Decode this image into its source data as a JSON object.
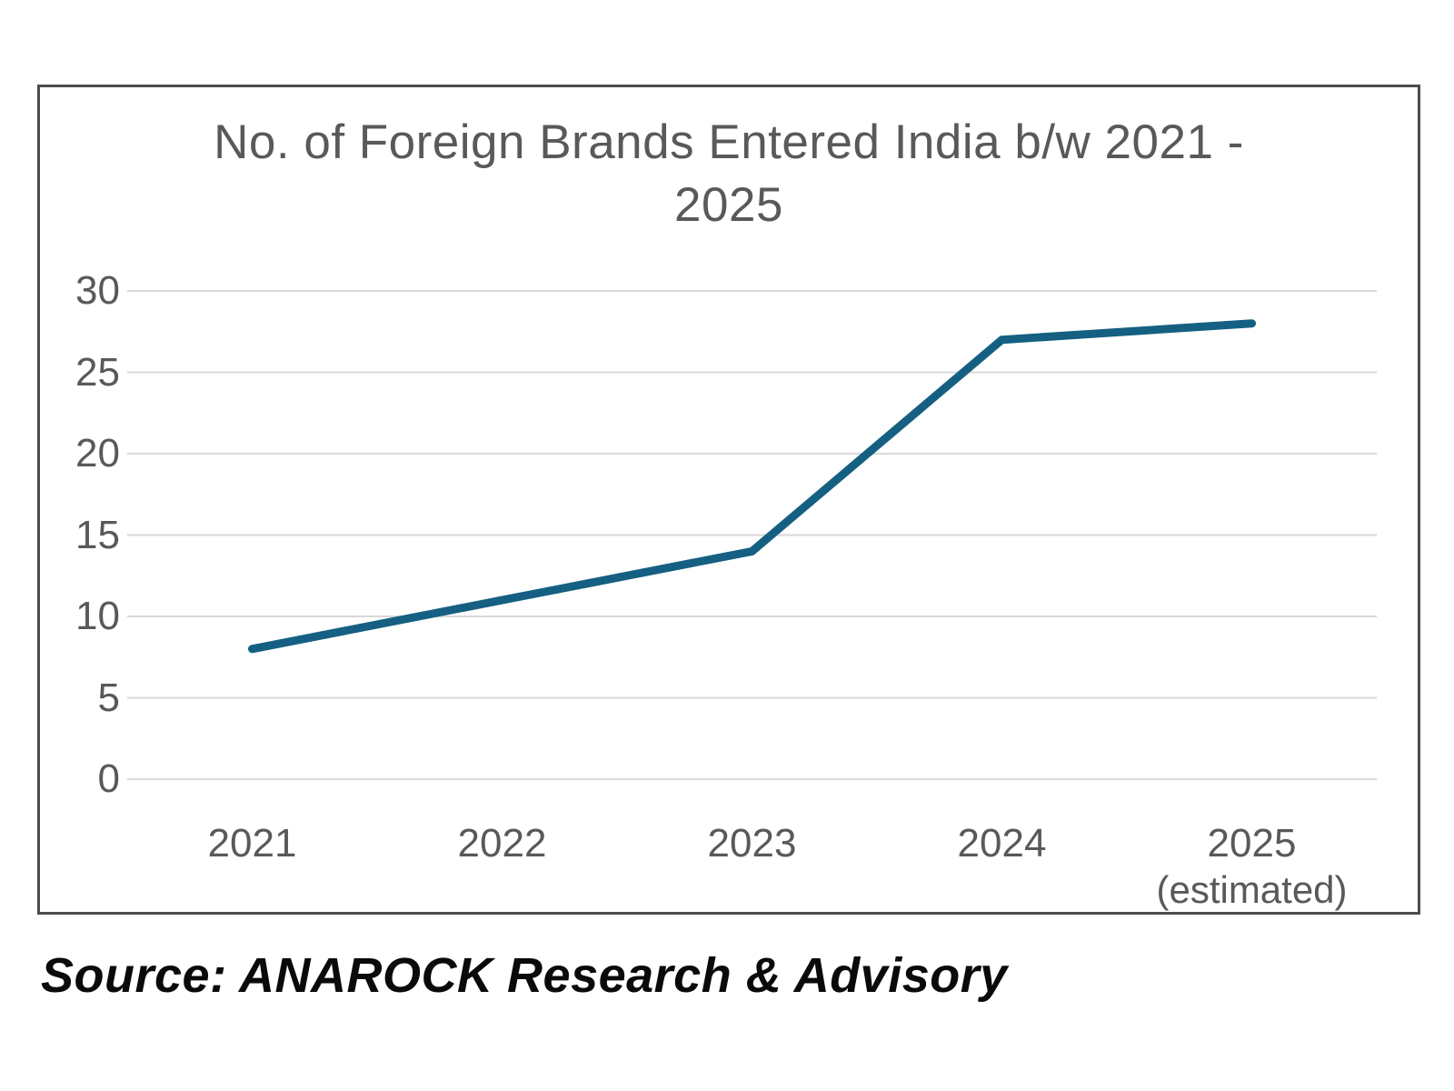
{
  "chart_data": {
    "type": "line",
    "title": "No. of Foreign Brands Entered India b/w 2021 - 2025",
    "categories": [
      "2021",
      "2022",
      "2023",
      "2024",
      "2025"
    ],
    "values": [
      8,
      11,
      14,
      27,
      28
    ],
    "last_category_note": "(estimated)",
    "ylim": [
      0,
      30
    ],
    "yticks": [
      0,
      5,
      10,
      15,
      20,
      25,
      30
    ],
    "grid": true,
    "legend_position": "none",
    "line_color": "#156082",
    "gridline_color": "#d9d9d9",
    "axis_label_color": "#595959",
    "title_color": "#595959"
  },
  "source": {
    "text": "Source: ANAROCK Research & Advisory"
  }
}
